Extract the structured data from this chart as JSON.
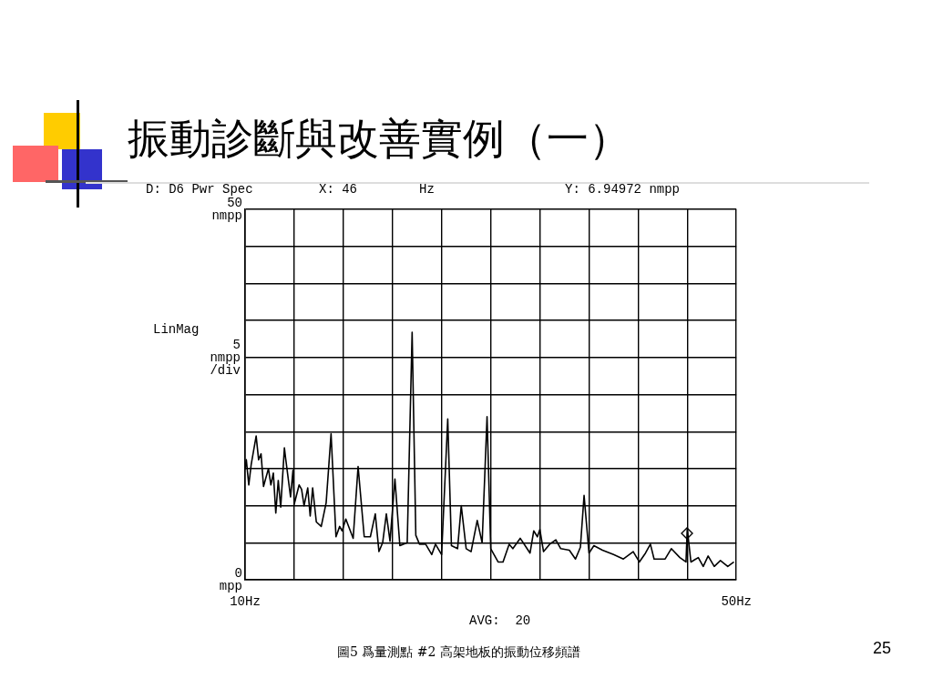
{
  "chart_data": {
    "type": "line",
    "title": "振動診斷與改善實例（一）",
    "ylabel": "LinMag\n5\nnmpp\n/div",
    "x": [
      10,
      10.1,
      10.3,
      10.5,
      10.9,
      11.1,
      11.3,
      11.5,
      11.9,
      12.1,
      12.3,
      12.5,
      12.7,
      12.9,
      13.2,
      13.3,
      13.7,
      13.9,
      14.0,
      14.4,
      14.6,
      14.8,
      15.1,
      15.3,
      15.5,
      15.8,
      16.2,
      16.6,
      17.0,
      17.4,
      17.7,
      17.9,
      18.2,
      18.8,
      19.2,
      19.7,
      20.2,
      20.6,
      20.9,
      21.2,
      21.5,
      21.8,
      22.2,
      22.6,
      23.2,
      23.6,
      23.9,
      24.2,
      24.7,
      25.2,
      25.5,
      26.0,
      26.5,
      26.8,
      27.3,
      27.6,
      28.0,
      28.4,
      28.9,
      29.3,
      29.7,
      30.0,
      30.6,
      31.0,
      31.5,
      31.8,
      32.4,
      32.8,
      33.2,
      33.5,
      33.8,
      34.0,
      34.3,
      34.8,
      35.3,
      35.7,
      36.4,
      36.9,
      37.3,
      37.6,
      38.0,
      38.4,
      39.1,
      40.0,
      40.8,
      41.6,
      42.1,
      42.6,
      43.0,
      43.3,
      44.2,
      44.7,
      45.4,
      45.9,
      46.0,
      46.3,
      46.9,
      47.3,
      47.7,
      48.2,
      48.7,
      49.3,
      49.8
    ],
    "series": [
      {
        "color": "#000000",
        "values": [
          14.9,
          16.2,
          12.8,
          15.6,
          19.4,
          16.2,
          17.0,
          12.6,
          15.0,
          12.8,
          14.4,
          9.0,
          13.4,
          9.8,
          17.8,
          16.4,
          11.2,
          14.8,
          10.2,
          12.8,
          12.2,
          10.0,
          12.4,
          8.6,
          12.4,
          7.8,
          7.2,
          10.4,
          19.7,
          5.8,
          7.2,
          6.6,
          8.2,
          5.6,
          15.3,
          5.8,
          5.8,
          8.9,
          3.8,
          5.0,
          8.9,
          5.2,
          13.6,
          4.6,
          5.0,
          33.4,
          6.0,
          4.8,
          4.8,
          3.4,
          4.8,
          3.4,
          21.7,
          4.6,
          4.2,
          10.0,
          4.2,
          3.8,
          8.0,
          5.0,
          22.0,
          4.2,
          2.4,
          2.4,
          4.8,
          4.2,
          5.6,
          4.6,
          3.6,
          6.6,
          5.8,
          6.8,
          3.8,
          4.8,
          5.4,
          4.2,
          4.0,
          2.8,
          4.4,
          11.4,
          3.6,
          4.6,
          4.0,
          3.4,
          2.8,
          3.8,
          2.4,
          3.6,
          4.8,
          2.8,
          2.8,
          4.2,
          3.0,
          2.4,
          6.9,
          2.4,
          3.0,
          1.8,
          3.2,
          1.8,
          2.6,
          1.8,
          2.4
        ]
      }
    ],
    "xlim": [
      10,
      50
    ],
    "xticks": [
      {
        "value": 10,
        "label": "10Hz"
      },
      {
        "value": 14,
        "label": null
      },
      {
        "value": 18,
        "label": null
      },
      {
        "value": 22,
        "label": null
      },
      {
        "value": 26,
        "label": null
      },
      {
        "value": 30,
        "label": null
      },
      {
        "value": 34,
        "label": null
      },
      {
        "value": 38,
        "label": null
      },
      {
        "value": 42,
        "label": null
      },
      {
        "value": 46,
        "label": null
      },
      {
        "value": 50,
        "label": "50Hz"
      }
    ],
    "ylim": [
      0,
      50
    ],
    "yticks": [
      {
        "value": 0,
        "label": "0\nmpp"
      },
      {
        "value": 5,
        "label": null
      },
      {
        "value": 10,
        "label": null
      },
      {
        "value": 15,
        "label": null
      },
      {
        "value": 20,
        "label": null
      },
      {
        "value": 25,
        "label": null
      },
      {
        "value": 30,
        "label": null
      },
      {
        "value": 35,
        "label": null
      },
      {
        "value": 40,
        "label": null
      },
      {
        "value": 45,
        "label": null
      },
      {
        "value": 50,
        "label": "50\nnmpp"
      }
    ],
    "grid": true,
    "legend": false,
    "marker": "none",
    "line_style": "solid",
    "annotations": [
      "D: D6 Pwr Spec",
      "X: 46",
      "Hz",
      "Y: 6.94972 nmpp",
      "AVG:  20",
      "圖5 爲量測點 #2 高架地板的振動位移頻譜",
      "25"
    ]
  }
}
